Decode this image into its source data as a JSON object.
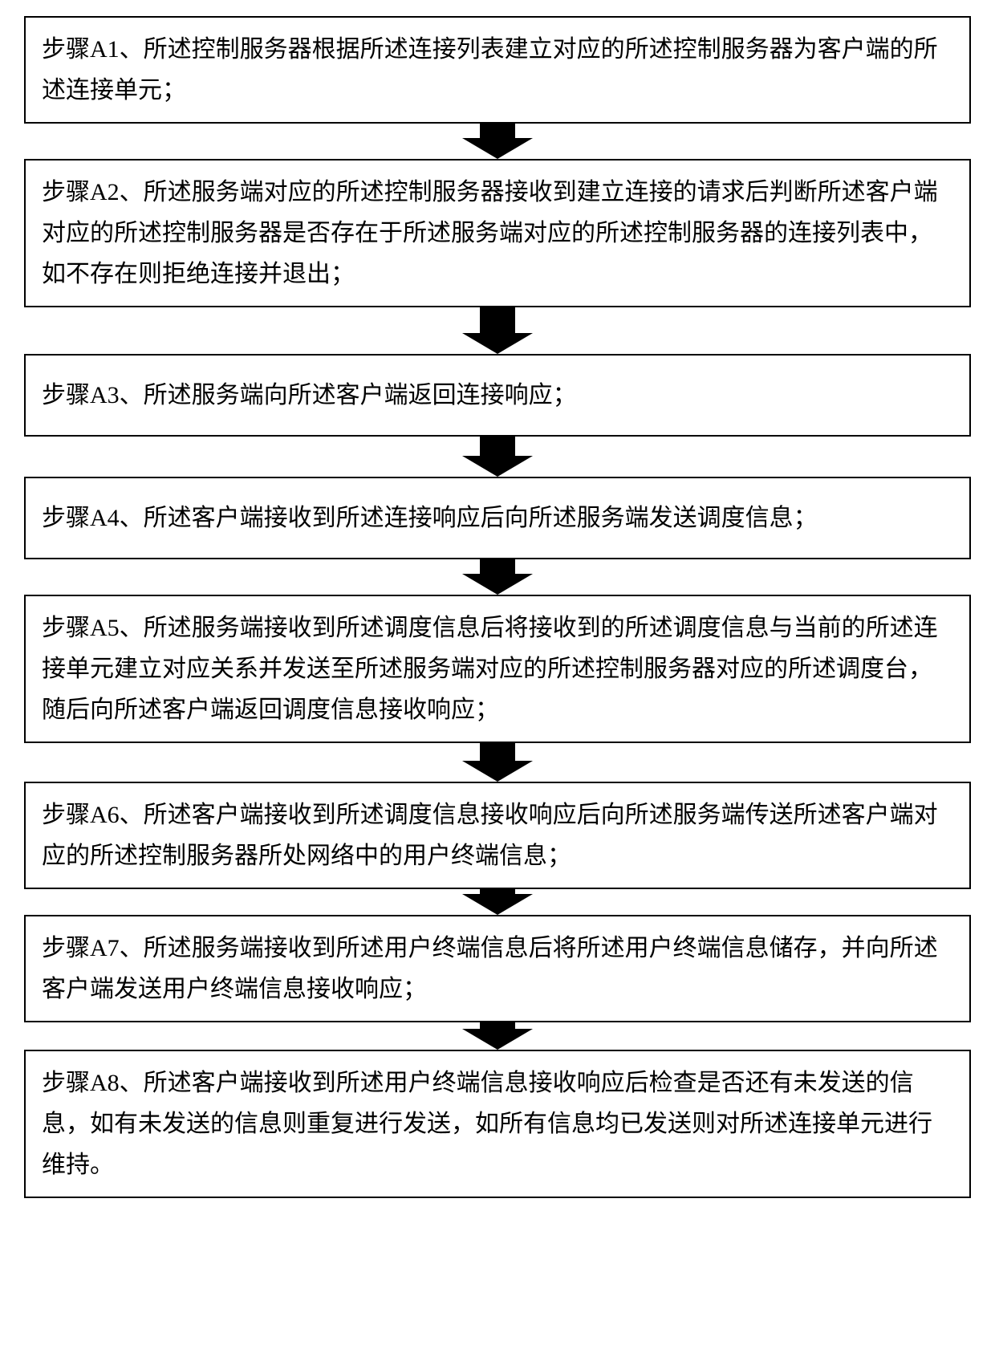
{
  "flowchart": {
    "type": "flowchart",
    "direction": "vertical",
    "box_border_color": "#000000",
    "box_border_width": 2,
    "box_background": "#ffffff",
    "text_color": "#000000",
    "font_size": 30,
    "font_family": "SimSun",
    "arrow_color": "#000000",
    "arrow_stem_width": 44,
    "arrow_head_width": 88,
    "arrow_head_height": 26,
    "steps": [
      {
        "id": "A1",
        "text": "步骤A1、所述控制服务器根据所述连接列表建立对应的所述控制服务器为客户端的所述连接单元；",
        "arrow_stem_height": 18
      },
      {
        "id": "A2",
        "text": "步骤A2、所述服务端对应的所述控制服务器接收到建立连接的请求后判断所述客户端对应的所述控制服务器是否存在于所述服务端对应的所述控制服务器的连接列表中，如不存在则拒绝连接并退出；",
        "arrow_stem_height": 32
      },
      {
        "id": "A3",
        "text": "步骤A3、所述服务端向所述客户端返回连接响应；",
        "arrow_stem_height": 24,
        "extra_padding": true
      },
      {
        "id": "A4",
        "text": "步骤A4、所述客户端接收到所述连接响应后向所述服务端发送调度信息；",
        "arrow_stem_height": 18,
        "extra_padding": true
      },
      {
        "id": "A5",
        "text": "步骤A5、所述服务端接收到所述调度信息后将接收到的所述调度信息与当前的所述连接单元建立对应关系并发送至所述服务端对应的所述控制服务器对应的所述调度台，随后向所述客户端返回调度信息接收响应；",
        "arrow_stem_height": 22
      },
      {
        "id": "A6",
        "text": "步骤A6、所述客户端接收到所述调度信息接收响应后向所述服务端传送所述客户端对应的所述控制服务器所处网络中的用户终端信息；",
        "arrow_stem_height": 6
      },
      {
        "id": "A7",
        "text": "步骤A7、所述服务端接收到所述用户终端信息后将所述用户终端信息储存，并向所述客户端发送用户终端信息接收响应；",
        "arrow_stem_height": 8
      },
      {
        "id": "A8",
        "text": "步骤A8、所述客户端接收到所述用户终端信息接收响应后检查是否还有未发送的信息，如有未发送的信息则重复进行发送，如所有信息均已发送则对所述连接单元进行维持。",
        "arrow_stem_height": 0
      }
    ]
  }
}
